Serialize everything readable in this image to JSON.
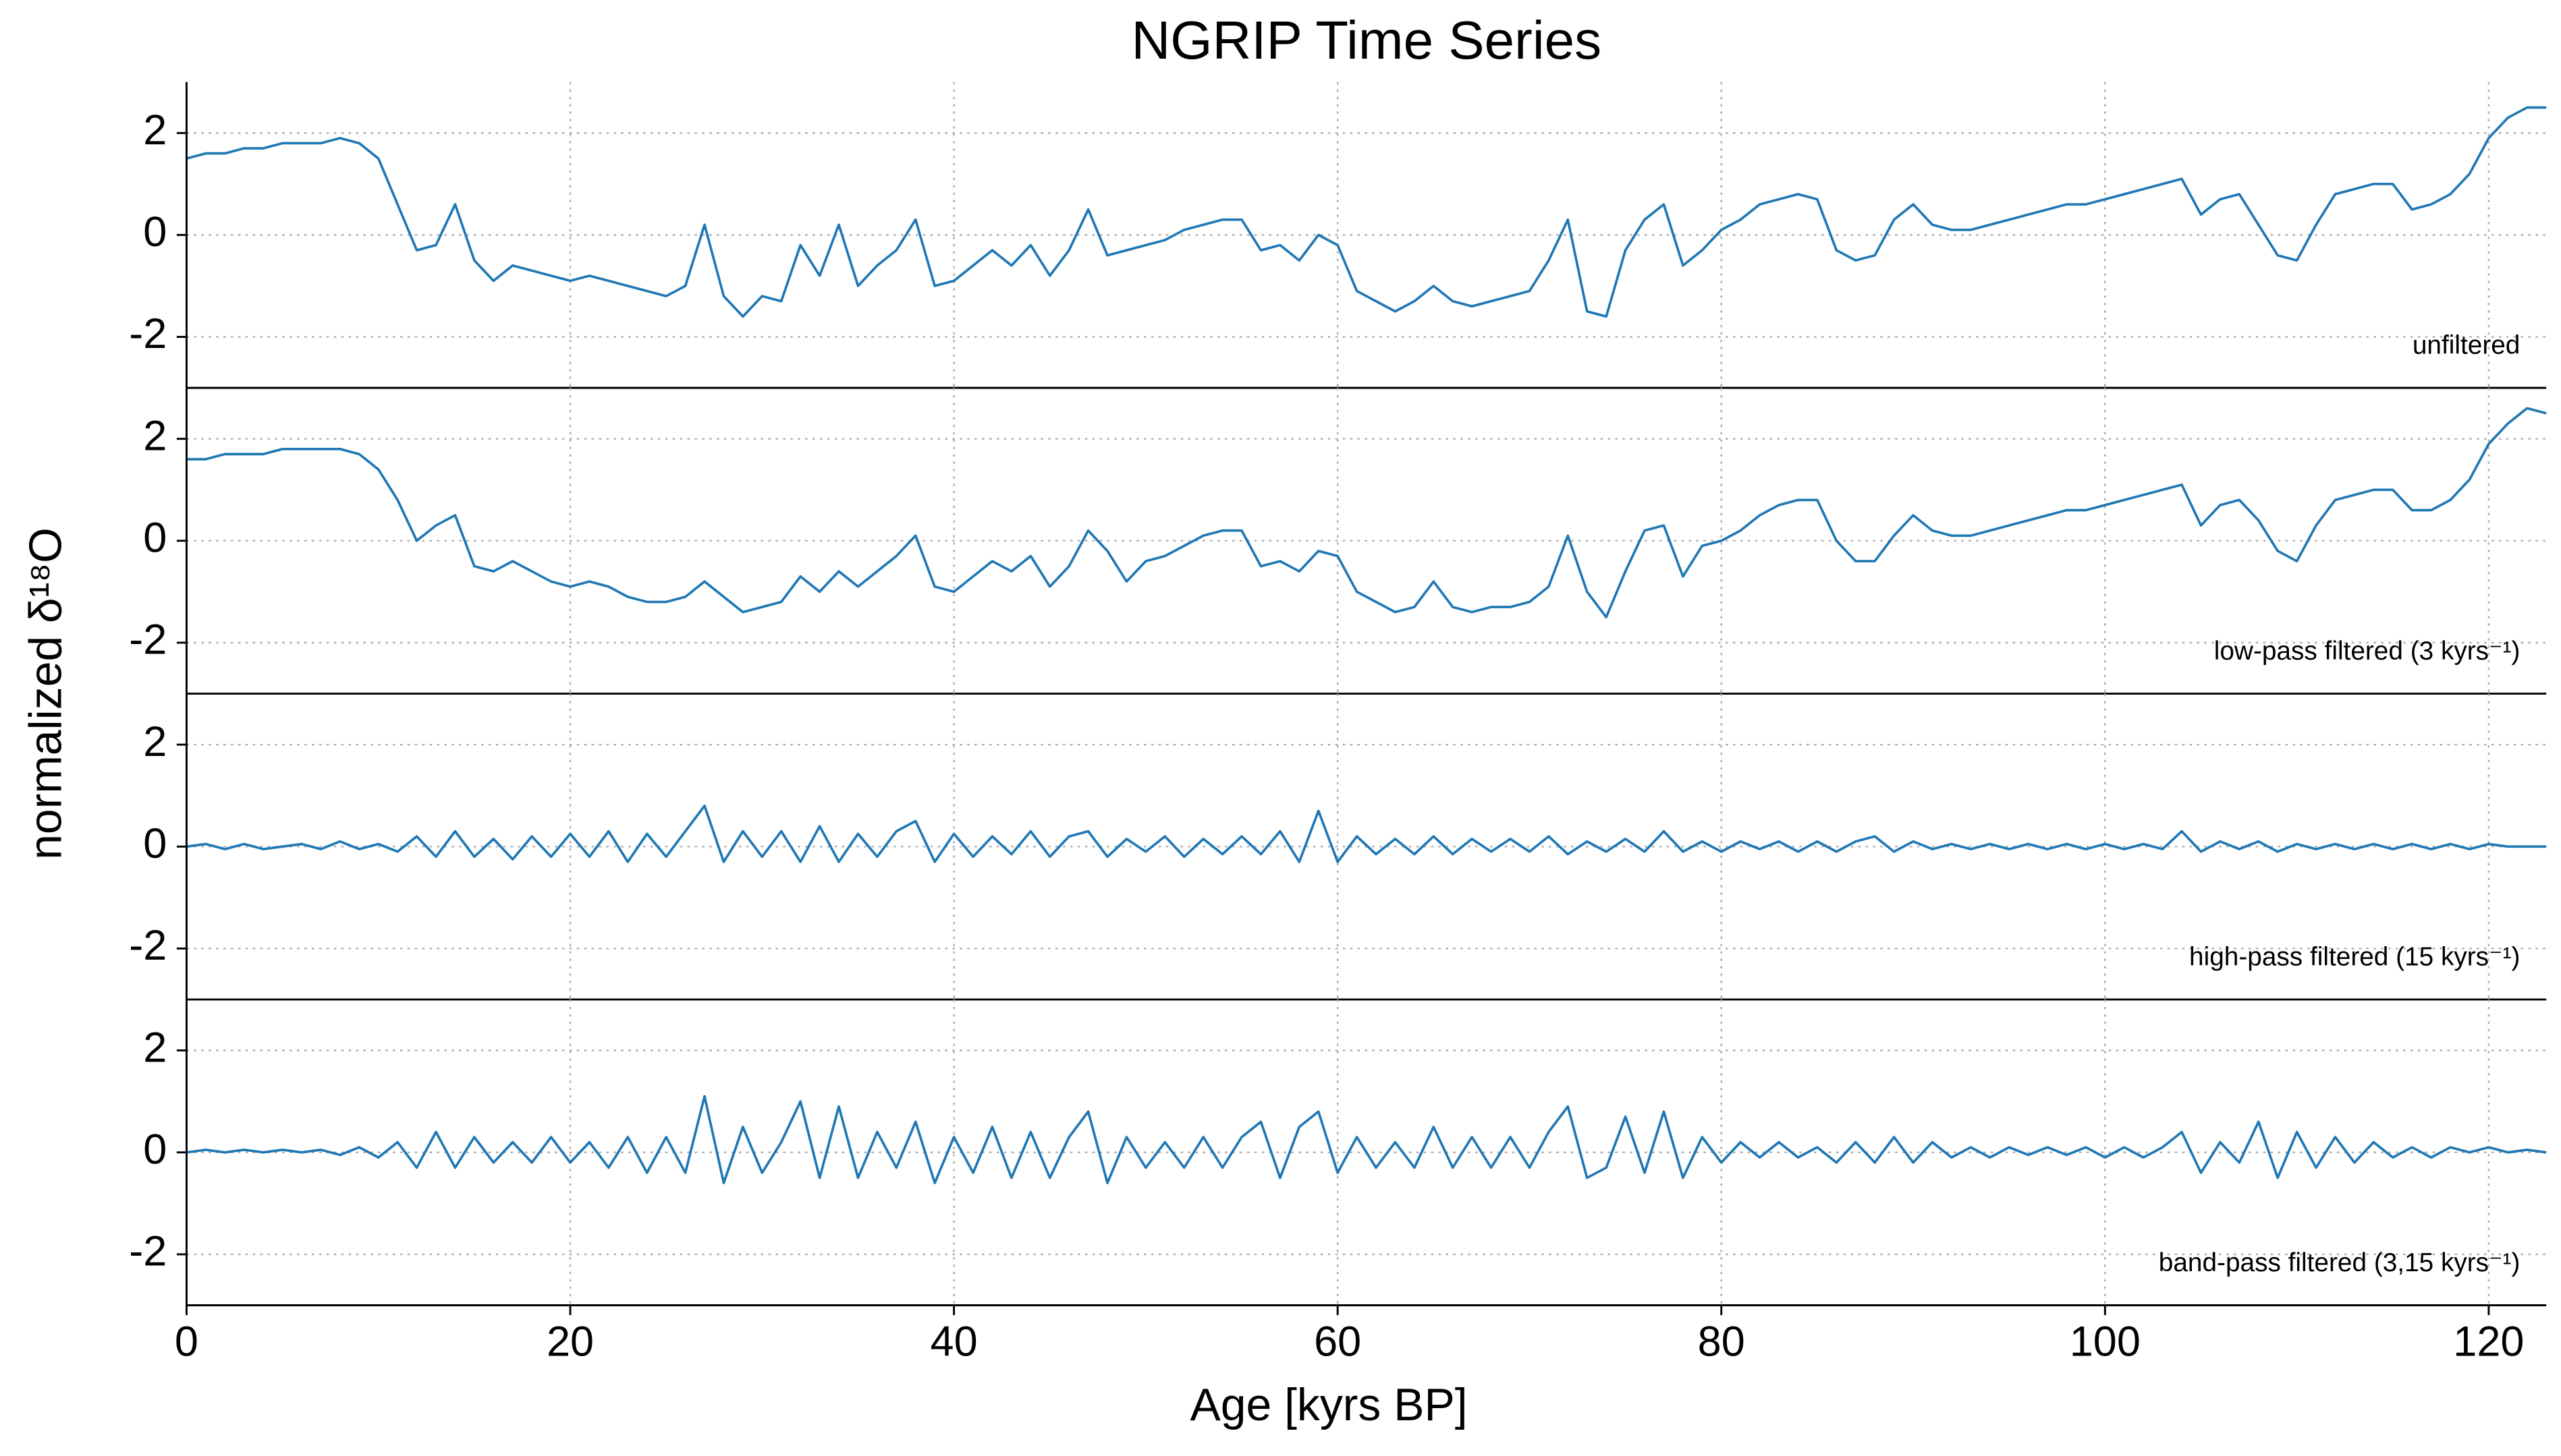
{
  "chart_data": [
    {
      "type": "line",
      "title": "NGRIP Time Series",
      "ylabel": "normalized δ¹⁸O",
      "annotation": "unfiltered",
      "x": [
        0,
        1,
        2,
        3,
        4,
        5,
        6,
        7,
        8,
        9,
        10,
        11,
        12,
        13,
        14,
        15,
        16,
        17,
        18,
        19,
        20,
        21,
        22,
        23,
        24,
        25,
        26,
        27,
        28,
        29,
        30,
        31,
        32,
        33,
        34,
        35,
        36,
        37,
        38,
        39,
        40,
        41,
        42,
        43,
        44,
        45,
        46,
        47,
        48,
        49,
        50,
        51,
        52,
        53,
        54,
        55,
        56,
        57,
        58,
        59,
        60,
        61,
        62,
        63,
        64,
        65,
        66,
        67,
        68,
        69,
        70,
        71,
        72,
        73,
        74,
        75,
        76,
        77,
        78,
        79,
        80,
        81,
        82,
        83,
        84,
        85,
        86,
        87,
        88,
        89,
        90,
        91,
        92,
        93,
        94,
        95,
        96,
        97,
        98,
        99,
        100,
        101,
        102,
        103,
        104,
        105,
        106,
        107,
        108,
        109,
        110,
        111,
        112,
        113,
        114,
        115,
        116,
        117,
        118,
        119,
        120,
        121,
        122,
        123
      ],
      "series": [
        {
          "name": "unfiltered",
          "color": "#1f77b4",
          "values": [
            1.5,
            1.6,
            1.6,
            1.7,
            1.7,
            1.8,
            1.8,
            1.8,
            1.9,
            1.8,
            1.5,
            0.6,
            -0.3,
            -0.2,
            0.6,
            -0.5,
            -0.9,
            -0.6,
            -0.7,
            -0.8,
            -0.9,
            -0.8,
            -0.9,
            -1.0,
            -1.1,
            -1.2,
            -1.0,
            0.2,
            -1.2,
            -1.6,
            -1.2,
            -1.3,
            -0.2,
            -0.8,
            0.2,
            -1.0,
            -0.6,
            -0.3,
            0.3,
            -1.0,
            -0.9,
            -0.6,
            -0.3,
            -0.6,
            -0.2,
            -0.8,
            -0.3,
            0.5,
            -0.4,
            -0.3,
            -0.2,
            -0.1,
            0.1,
            0.2,
            0.3,
            0.3,
            -0.3,
            -0.2,
            -0.5,
            0.0,
            -0.2,
            -1.1,
            -1.3,
            -1.5,
            -1.3,
            -1.0,
            -1.3,
            -1.4,
            -1.3,
            -1.2,
            -1.1,
            -0.5,
            0.3,
            -1.5,
            -1.6,
            -0.3,
            0.3,
            0.6,
            -0.6,
            -0.3,
            0.1,
            0.3,
            0.6,
            0.7,
            0.8,
            0.7,
            -0.3,
            -0.5,
            -0.4,
            0.3,
            0.6,
            0.2,
            0.1,
            0.1,
            0.2,
            0.3,
            0.4,
            0.5,
            0.6,
            0.6,
            0.7,
            0.8,
            0.9,
            1.0,
            1.1,
            0.4,
            0.7,
            0.8,
            0.2,
            -0.4,
            -0.5,
            0.2,
            0.8,
            0.9,
            1.0,
            1.0,
            0.5,
            0.6,
            0.8,
            1.2,
            1.9,
            2.3,
            2.5,
            2.5
          ]
        }
      ],
      "xlim": [
        0,
        123
      ],
      "ylim": [
        -3,
        3
      ],
      "xticks": [
        0,
        20,
        40,
        60,
        80,
        100,
        120
      ],
      "yticks": [
        -2,
        0,
        2
      ],
      "xtick_labels": false,
      "grid": true
    },
    {
      "type": "line",
      "annotation": "low-pass filtered (3 kyrs⁻¹)",
      "x": [
        0,
        1,
        2,
        3,
        4,
        5,
        6,
        7,
        8,
        9,
        10,
        11,
        12,
        13,
        14,
        15,
        16,
        17,
        18,
        19,
        20,
        21,
        22,
        23,
        24,
        25,
        26,
        27,
        28,
        29,
        30,
        31,
        32,
        33,
        34,
        35,
        36,
        37,
        38,
        39,
        40,
        41,
        42,
        43,
        44,
        45,
        46,
        47,
        48,
        49,
        50,
        51,
        52,
        53,
        54,
        55,
        56,
        57,
        58,
        59,
        60,
        61,
        62,
        63,
        64,
        65,
        66,
        67,
        68,
        69,
        70,
        71,
        72,
        73,
        74,
        75,
        76,
        77,
        78,
        79,
        80,
        81,
        82,
        83,
        84,
        85,
        86,
        87,
        88,
        89,
        90,
        91,
        92,
        93,
        94,
        95,
        96,
        97,
        98,
        99,
        100,
        101,
        102,
        103,
        104,
        105,
        106,
        107,
        108,
        109,
        110,
        111,
        112,
        113,
        114,
        115,
        116,
        117,
        118,
        119,
        120,
        121,
        122,
        123
      ],
      "series": [
        {
          "name": "low-pass filtered",
          "color": "#1f77b4",
          "values": [
            1.6,
            1.6,
            1.7,
            1.7,
            1.7,
            1.8,
            1.8,
            1.8,
            1.8,
            1.7,
            1.4,
            0.8,
            0.0,
            0.3,
            0.5,
            -0.5,
            -0.6,
            -0.4,
            -0.6,
            -0.8,
            -0.9,
            -0.8,
            -0.9,
            -1.1,
            -1.2,
            -1.2,
            -1.1,
            -0.8,
            -1.1,
            -1.4,
            -1.3,
            -1.2,
            -0.7,
            -1.0,
            -0.6,
            -0.9,
            -0.6,
            -0.3,
            0.1,
            -0.9,
            -1.0,
            -0.7,
            -0.4,
            -0.6,
            -0.3,
            -0.9,
            -0.5,
            0.2,
            -0.2,
            -0.8,
            -0.4,
            -0.3,
            -0.1,
            0.1,
            0.2,
            0.2,
            -0.5,
            -0.4,
            -0.6,
            -0.2,
            -0.3,
            -1.0,
            -1.2,
            -1.4,
            -1.3,
            -0.8,
            -1.3,
            -1.4,
            -1.3,
            -1.3,
            -1.2,
            -0.9,
            0.1,
            -1.0,
            -1.5,
            -0.6,
            0.2,
            0.3,
            -0.7,
            -0.1,
            0.0,
            0.2,
            0.5,
            0.7,
            0.8,
            0.8,
            0.0,
            -0.4,
            -0.4,
            0.1,
            0.5,
            0.2,
            0.1,
            0.1,
            0.2,
            0.3,
            0.4,
            0.5,
            0.6,
            0.6,
            0.7,
            0.8,
            0.9,
            1.0,
            1.1,
            0.3,
            0.7,
            0.8,
            0.4,
            -0.2,
            -0.4,
            0.3,
            0.8,
            0.9,
            1.0,
            1.0,
            0.6,
            0.6,
            0.8,
            1.2,
            1.9,
            2.3,
            2.6,
            2.5
          ]
        }
      ],
      "xlim": [
        0,
        123
      ],
      "ylim": [
        -3,
        3
      ],
      "xticks": [
        0,
        20,
        40,
        60,
        80,
        100,
        120
      ],
      "yticks": [
        -2,
        0,
        2
      ],
      "xtick_labels": false,
      "grid": true
    },
    {
      "type": "line",
      "annotation": "high-pass filtered (15 kyrs⁻¹)",
      "x": [
        0,
        1,
        2,
        3,
        4,
        5,
        6,
        7,
        8,
        9,
        10,
        11,
        12,
        13,
        14,
        15,
        16,
        17,
        18,
        19,
        20,
        21,
        22,
        23,
        24,
        25,
        26,
        27,
        28,
        29,
        30,
        31,
        32,
        33,
        34,
        35,
        36,
        37,
        38,
        39,
        40,
        41,
        42,
        43,
        44,
        45,
        46,
        47,
        48,
        49,
        50,
        51,
        52,
        53,
        54,
        55,
        56,
        57,
        58,
        59,
        60,
        61,
        62,
        63,
        64,
        65,
        66,
        67,
        68,
        69,
        70,
        71,
        72,
        73,
        74,
        75,
        76,
        77,
        78,
        79,
        80,
        81,
        82,
        83,
        84,
        85,
        86,
        87,
        88,
        89,
        90,
        91,
        92,
        93,
        94,
        95,
        96,
        97,
        98,
        99,
        100,
        101,
        102,
        103,
        104,
        105,
        106,
        107,
        108,
        109,
        110,
        111,
        112,
        113,
        114,
        115,
        116,
        117,
        118,
        119,
        120,
        121,
        122,
        123
      ],
      "series": [
        {
          "name": "high-pass filtered",
          "color": "#1f77b4",
          "values": [
            0.0,
            0.05,
            -0.05,
            0.05,
            -0.05,
            0.0,
            0.05,
            -0.05,
            0.1,
            -0.05,
            0.05,
            -0.1,
            0.2,
            -0.2,
            0.3,
            -0.2,
            0.15,
            -0.25,
            0.2,
            -0.2,
            0.25,
            -0.2,
            0.3,
            -0.3,
            0.25,
            -0.2,
            0.3,
            0.8,
            -0.3,
            0.3,
            -0.2,
            0.3,
            -0.3,
            0.4,
            -0.3,
            0.25,
            -0.2,
            0.3,
            0.5,
            -0.3,
            0.25,
            -0.2,
            0.2,
            -0.15,
            0.3,
            -0.2,
            0.2,
            0.3,
            -0.2,
            0.15,
            -0.1,
            0.2,
            -0.2,
            0.15,
            -0.15,
            0.2,
            -0.15,
            0.3,
            -0.3,
            0.7,
            -0.3,
            0.2,
            -0.15,
            0.15,
            -0.15,
            0.2,
            -0.15,
            0.15,
            -0.1,
            0.15,
            -0.1,
            0.2,
            -0.15,
            0.1,
            -0.1,
            0.15,
            -0.1,
            0.3,
            -0.1,
            0.1,
            -0.1,
            0.1,
            -0.05,
            0.1,
            -0.1,
            0.1,
            -0.1,
            0.1,
            0.2,
            -0.1,
            0.1,
            -0.05,
            0.05,
            -0.05,
            0.05,
            -0.05,
            0.05,
            -0.05,
            0.05,
            -0.05,
            0.05,
            -0.05,
            0.05,
            -0.05,
            0.3,
            -0.1,
            0.1,
            -0.05,
            0.1,
            -0.1,
            0.05,
            -0.05,
            0.05,
            -0.05,
            0.05,
            -0.05,
            0.05,
            -0.05,
            0.05,
            -0.05,
            0.05,
            0.0,
            0.0,
            0.0
          ]
        }
      ],
      "xlim": [
        0,
        123
      ],
      "ylim": [
        -3,
        3
      ],
      "xticks": [
        0,
        20,
        40,
        60,
        80,
        100,
        120
      ],
      "yticks": [
        -2,
        0,
        2
      ],
      "xtick_labels": false,
      "grid": true
    },
    {
      "type": "line",
      "annotation": "band-pass filtered (3,15 kyrs⁻¹)",
      "xlabel": "Age [kyrs BP]",
      "x": [
        0,
        1,
        2,
        3,
        4,
        5,
        6,
        7,
        8,
        9,
        10,
        11,
        12,
        13,
        14,
        15,
        16,
        17,
        18,
        19,
        20,
        21,
        22,
        23,
        24,
        25,
        26,
        27,
        28,
        29,
        30,
        31,
        32,
        33,
        34,
        35,
        36,
        37,
        38,
        39,
        40,
        41,
        42,
        43,
        44,
        45,
        46,
        47,
        48,
        49,
        50,
        51,
        52,
        53,
        54,
        55,
        56,
        57,
        58,
        59,
        60,
        61,
        62,
        63,
        64,
        65,
        66,
        67,
        68,
        69,
        70,
        71,
        72,
        73,
        74,
        75,
        76,
        77,
        78,
        79,
        80,
        81,
        82,
        83,
        84,
        85,
        86,
        87,
        88,
        89,
        90,
        91,
        92,
        93,
        94,
        95,
        96,
        97,
        98,
        99,
        100,
        101,
        102,
        103,
        104,
        105,
        106,
        107,
        108,
        109,
        110,
        111,
        112,
        113,
        114,
        115,
        116,
        117,
        118,
        119,
        120,
        121,
        122,
        123
      ],
      "series": [
        {
          "name": "band-pass filtered",
          "color": "#1f77b4",
          "values": [
            0.0,
            0.05,
            0.0,
            0.05,
            0.0,
            0.05,
            0.0,
            0.05,
            -0.05,
            0.1,
            -0.1,
            0.2,
            -0.3,
            0.4,
            -0.3,
            0.3,
            -0.2,
            0.2,
            -0.2,
            0.3,
            -0.2,
            0.2,
            -0.3,
            0.3,
            -0.4,
            0.3,
            -0.4,
            1.1,
            -0.6,
            0.5,
            -0.4,
            0.2,
            1.0,
            -0.5,
            0.9,
            -0.5,
            0.4,
            -0.3,
            0.6,
            -0.6,
            0.3,
            -0.4,
            0.5,
            -0.5,
            0.4,
            -0.5,
            0.3,
            0.8,
            -0.6,
            0.3,
            -0.3,
            0.2,
            -0.3,
            0.3,
            -0.3,
            0.3,
            0.6,
            -0.5,
            0.5,
            0.8,
            -0.4,
            0.3,
            -0.3,
            0.2,
            -0.3,
            0.5,
            -0.3,
            0.3,
            -0.3,
            0.3,
            -0.3,
            0.4,
            0.9,
            -0.5,
            -0.3,
            0.7,
            -0.4,
            0.8,
            -0.5,
            0.3,
            -0.2,
            0.2,
            -0.1,
            0.2,
            -0.1,
            0.1,
            -0.2,
            0.2,
            -0.2,
            0.3,
            -0.2,
            0.2,
            -0.1,
            0.1,
            -0.1,
            0.1,
            -0.05,
            0.1,
            -0.05,
            0.1,
            -0.1,
            0.1,
            -0.1,
            0.1,
            0.4,
            -0.4,
            0.2,
            -0.2,
            0.6,
            -0.5,
            0.4,
            -0.3,
            0.3,
            -0.2,
            0.2,
            -0.1,
            0.1,
            -0.1,
            0.1,
            0.0,
            0.1,
            0.0,
            0.05,
            0.0
          ]
        }
      ],
      "xlim": [
        0,
        123
      ],
      "ylim": [
        -3,
        3
      ],
      "xticks": [
        0,
        20,
        40,
        60,
        80,
        100,
        120
      ],
      "yticks": [
        -2,
        0,
        2
      ],
      "xtick_labels": true,
      "grid": true
    }
  ]
}
